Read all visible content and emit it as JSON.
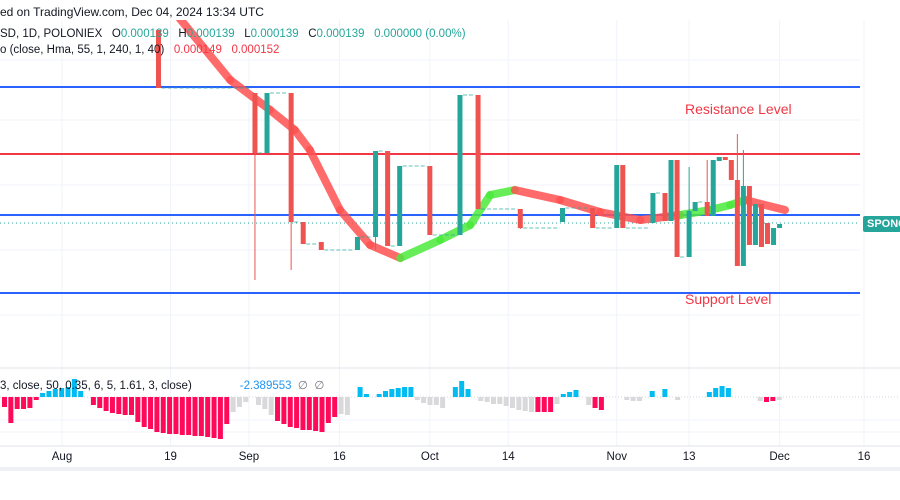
{
  "header": {
    "published": "ed on TradingView.com, Dec 04, 2024 13:34 UTC"
  },
  "legend": {
    "symbol": "SD, 1D, POLONIEX",
    "o_label": "O",
    "o": "0.000139",
    "h_label": "H",
    "h": "0.000139",
    "l_label": "L",
    "l": "0.000139",
    "c_label": "C",
    "c": "0.000139",
    "change": "0.000000 (0.00%)",
    "indicator": "o (close, Hma, 55, 1, 240, 1, 40)",
    "ind_v1": "0.000149",
    "ind_v2": "0.000152",
    "oscillator": "3, close, 50, 0.35, 6, 5, 1.61, 3, close)",
    "osc_value": "-2.389553",
    "osc_na1": "∅",
    "osc_na2": "∅"
  },
  "annotations": {
    "resistance": "Resistance Level",
    "support": "Support Level"
  },
  "price_tag": "SPONG",
  "colors": {
    "up": "#26a69a",
    "down": "#ef5350",
    "hma_down": "#ff5252",
    "hma_up": "#4cea3c",
    "level_blue": "#2962ff",
    "level_red": "#f23645",
    "osc_pos": "#00bcf2",
    "osc_neg": "#ff0a5a",
    "osc_weak": "#d9d9dc"
  },
  "chart_data": {
    "type": "candlestick",
    "x_unit": "days since Aug 1 2024",
    "x_ticks": [
      {
        "label": "Aug",
        "d": 0
      },
      {
        "label": "19",
        "d": 18
      },
      {
        "label": "Sep",
        "d": 31
      },
      {
        "label": "16",
        "d": 46
      },
      {
        "label": "Oct",
        "d": 61
      },
      {
        "label": "14",
        "d": 74
      },
      {
        "label": "Nov",
        "d": 92
      },
      {
        "label": "13",
        "d": 104
      },
      {
        "label": "Dec",
        "d": 119
      },
      {
        "label": "16",
        "d": 133
      }
    ],
    "price_unit": "relative chart units",
    "candles": [
      [
        16,
        470,
        470,
        412,
        412
      ],
      [
        32,
        407,
        407,
        220,
        347
      ],
      [
        34,
        347,
        407,
        347,
        407
      ],
      [
        38,
        407,
        407,
        230,
        278
      ],
      [
        40,
        278,
        278,
        256,
        256
      ],
      [
        43,
        258,
        258,
        250,
        250
      ],
      [
        49,
        250,
        263,
        250,
        263
      ],
      [
        52,
        263,
        349,
        250,
        349
      ],
      [
        54,
        349,
        349,
        254,
        254
      ],
      [
        56,
        254,
        334,
        254,
        334
      ],
      [
        61,
        334,
        334,
        265,
        265
      ],
      [
        66,
        265,
        405,
        265,
        405
      ],
      [
        69,
        405,
        405,
        291,
        291
      ],
      [
        76,
        291,
        291,
        271,
        272
      ],
      [
        83,
        278,
        292,
        278,
        292
      ],
      [
        88,
        292,
        292,
        272,
        272
      ],
      [
        92,
        272,
        335,
        272,
        335
      ],
      [
        93,
        335,
        335,
        272,
        272
      ],
      [
        98,
        277,
        307,
        277,
        307
      ],
      [
        100,
        307,
        307,
        279,
        279
      ],
      [
        101,
        279,
        340,
        279,
        340
      ],
      [
        102,
        340,
        340,
        243,
        243
      ],
      [
        104,
        243,
        333,
        243,
        289
      ],
      [
        105,
        289,
        298,
        289,
        298
      ],
      [
        107,
        298,
        340,
        284,
        284
      ],
      [
        108,
        284,
        340,
        284,
        340
      ],
      [
        109,
        339,
        343,
        339,
        343
      ],
      [
        110,
        343,
        343,
        340,
        340
      ],
      [
        111,
        340,
        340,
        320,
        320
      ],
      [
        112,
        320,
        366,
        234,
        234
      ],
      [
        113,
        234,
        350,
        234,
        314
      ],
      [
        114,
        314,
        314,
        255,
        255
      ],
      [
        115,
        255,
        296,
        255,
        296
      ],
      [
        116,
        296,
        296,
        253,
        253
      ],
      [
        117,
        277,
        277,
        256,
        256
      ],
      [
        118,
        255,
        272,
        255,
        272
      ],
      [
        119,
        272,
        276,
        272,
        276
      ]
    ],
    "hma": [
      {
        "d": 17,
        "v": 500,
        "trend": "down"
      },
      {
        "d": 27.9,
        "v": 420,
        "trend": "down"
      },
      {
        "d": 34.5,
        "v": 390,
        "trend": "down"
      },
      {
        "d": 38.6,
        "v": 370,
        "trend": "down"
      },
      {
        "d": 41.1,
        "v": 350,
        "trend": "down"
      },
      {
        "d": 46.1,
        "v": 290,
        "trend": "down"
      },
      {
        "d": 51.1,
        "v": 255,
        "trend": "down"
      },
      {
        "d": 56.1,
        "v": 242,
        "trend": "up"
      },
      {
        "d": 62.7,
        "v": 260,
        "trend": "up"
      },
      {
        "d": 67.7,
        "v": 275,
        "trend": "up"
      },
      {
        "d": 71,
        "v": 305,
        "trend": "up"
      },
      {
        "d": 75.1,
        "v": 310,
        "trend": "down"
      },
      {
        "d": 82.6,
        "v": 300,
        "trend": "down"
      },
      {
        "d": 89.2,
        "v": 288,
        "trend": "down"
      },
      {
        "d": 95.9,
        "v": 280,
        "trend": "down"
      },
      {
        "d": 102.5,
        "v": 285,
        "trend": "up"
      },
      {
        "d": 107.5,
        "v": 290,
        "trend": "up"
      },
      {
        "d": 110.8,
        "v": 295,
        "trend": "up"
      },
      {
        "d": 113.3,
        "v": 300,
        "trend": "down"
      },
      {
        "d": 119.9,
        "v": 290,
        "trend": "down"
      }
    ],
    "levels": [
      {
        "name": "resistance-line",
        "v": 413,
        "color": "blue"
      },
      {
        "name": "mid-resistance-line",
        "v": 346,
        "color": "red"
      },
      {
        "name": "mid-support-line",
        "v": 285,
        "color": "blue"
      },
      {
        "name": "support-line",
        "v": 207,
        "color": "blue"
      }
    ],
    "last_price_v": 277,
    "oscillator": [
      [
        -10,
        "r"
      ],
      [
        -26,
        "r"
      ],
      [
        -12,
        "r"
      ],
      [
        -12,
        "r"
      ],
      [
        -11,
        "r"
      ],
      [
        -3,
        "r"
      ],
      [
        4,
        "b"
      ],
      [
        6,
        "b"
      ],
      [
        8,
        "b"
      ],
      [
        9,
        "b"
      ],
      [
        10,
        "b"
      ],
      [
        18,
        "b"
      ],
      [
        6,
        "b"
      ],
      null,
      [
        -8,
        "r"
      ],
      [
        -11,
        "r"
      ],
      [
        -14,
        "r"
      ],
      [
        -16,
        "r"
      ],
      [
        -17,
        "r"
      ],
      [
        -18,
        "r"
      ],
      [
        -18,
        "r"
      ],
      [
        -25,
        "r"
      ],
      [
        -30,
        "r"
      ],
      [
        -32,
        "r"
      ],
      [
        -35,
        "r"
      ],
      [
        -36,
        "r"
      ],
      [
        -37,
        "r"
      ],
      [
        -37,
        "r"
      ],
      [
        -38,
        "r"
      ],
      [
        -38,
        "r"
      ],
      [
        -39,
        "r"
      ],
      [
        -39,
        "r"
      ],
      [
        -40,
        "r"
      ],
      [
        -41,
        "r"
      ],
      [
        -42,
        "r"
      ],
      [
        -27,
        "r"
      ],
      [
        -15,
        "g"
      ],
      [
        -10,
        "g"
      ],
      [
        -5,
        "g"
      ],
      null,
      [
        -8,
        "g"
      ],
      [
        -12,
        "g"
      ],
      [
        -18,
        "g"
      ],
      [
        -24,
        "r"
      ],
      [
        -27,
        "r"
      ],
      [
        -30,
        "r"
      ],
      [
        -31,
        "r"
      ],
      [
        -33,
        "r"
      ],
      [
        -33,
        "r"
      ],
      [
        -34,
        "r"
      ],
      [
        -35,
        "r"
      ],
      [
        -26,
        "r"
      ],
      [
        -20,
        "r"
      ],
      [
        -17,
        "g"
      ],
      [
        -18,
        "g"
      ],
      null,
      [
        10,
        "b"
      ],
      [
        3,
        "b"
      ],
      null,
      [
        3,
        "b"
      ],
      [
        6,
        "b"
      ],
      [
        8,
        "b"
      ],
      [
        9,
        "b"
      ],
      [
        10,
        "b"
      ],
      [
        10,
        "b"
      ],
      [
        -3,
        "g"
      ],
      [
        -6,
        "g"
      ],
      [
        -8,
        "g"
      ],
      [
        -8,
        "g"
      ],
      [
        -11,
        "g"
      ],
      null,
      [
        10,
        "b"
      ],
      [
        16,
        "b"
      ],
      [
        8,
        "b"
      ],
      null,
      [
        -4,
        "g"
      ],
      [
        -5,
        "g"
      ],
      [
        -7,
        "g"
      ],
      [
        -7,
        "g"
      ],
      [
        -9,
        "g"
      ],
      [
        -11,
        "g"
      ],
      [
        -13,
        "g"
      ],
      [
        -14,
        "g"
      ],
      [
        -15,
        "g"
      ],
      [
        -15,
        "r"
      ],
      [
        -15,
        "r"
      ],
      [
        -15,
        "r"
      ],
      [
        -7,
        "g"
      ],
      [
        3,
        "b"
      ],
      [
        5,
        "b"
      ],
      [
        7,
        "b"
      ],
      null,
      [
        -8,
        "g"
      ],
      [
        -11,
        "r"
      ],
      [
        -13,
        "r"
      ],
      null,
      null,
      null,
      [
        -3,
        "g"
      ],
      [
        -4,
        "g"
      ],
      [
        -4,
        "g"
      ],
      null,
      [
        6,
        "b"
      ],
      null,
      [
        8,
        "b"
      ],
      null,
      [
        -3,
        "g"
      ],
      null,
      null,
      null,
      null,
      [
        5,
        "b"
      ],
      [
        9,
        "b"
      ],
      [
        11,
        "b"
      ],
      [
        9,
        "b"
      ],
      null,
      null,
      null,
      null,
      [
        -4,
        "g"
      ],
      [
        -5,
        "r"
      ],
      [
        -4,
        "r"
      ],
      [
        -3,
        "g"
      ]
    ]
  }
}
